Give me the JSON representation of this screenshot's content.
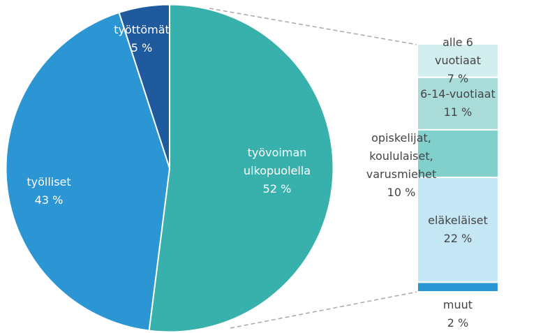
{
  "chart_data": {
    "type": "pie",
    "categories": [
      "työvoiman\nulkopuolella",
      "työlliset",
      "työttömät"
    ],
    "values": [
      52,
      43,
      5
    ],
    "value_labels": [
      "52 %",
      "43 %",
      "5 %"
    ],
    "colors": [
      "#38b0ac",
      "#2b96d3",
      "#1f5a9e"
    ],
    "breakdown": {
      "type": "bar",
      "categories": [
        "alle 6 vuotiaat",
        "6-14-vuotiaat",
        "opiskelijat,\nkoululaiset,\nvarusmiehet",
        "eläkeläiset",
        "muut"
      ],
      "values": [
        7,
        11,
        10,
        22,
        2
      ],
      "value_labels": [
        "7 %",
        "11 %",
        "10 %",
        "22 %",
        "2 %"
      ],
      "colors": [
        "#d3eeee",
        "#a9dcd9",
        "#82d0cc",
        "#c5e6f5",
        "#2a96d3"
      ]
    }
  }
}
